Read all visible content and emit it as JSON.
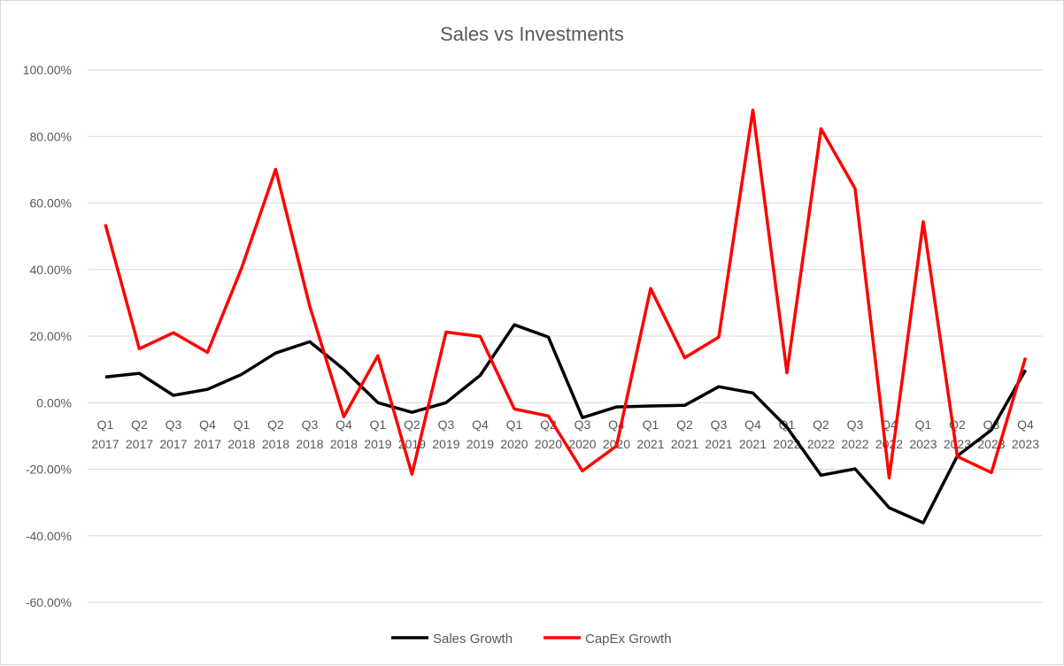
{
  "chart_data": {
    "type": "line",
    "title": "Sales vs Investments",
    "xlabel": "",
    "ylabel": "",
    "ylim": [
      -60,
      100
    ],
    "ytick_step": 20,
    "ytick_format": "percent_2dp",
    "grid": true,
    "legend_position": "bottom",
    "categories": [
      [
        "Q1",
        "2017"
      ],
      [
        "Q2",
        "2017"
      ],
      [
        "Q3",
        "2017"
      ],
      [
        "Q4",
        "2017"
      ],
      [
        "Q1",
        "2018"
      ],
      [
        "Q2",
        "2018"
      ],
      [
        "Q3",
        "2018"
      ],
      [
        "Q4",
        "2018"
      ],
      [
        "Q1",
        "2019"
      ],
      [
        "Q2",
        "2019"
      ],
      [
        "Q3",
        "2019"
      ],
      [
        "Q4",
        "2019"
      ],
      [
        "Q1",
        "2020"
      ],
      [
        "Q2",
        "2020"
      ],
      [
        "Q3",
        "2020"
      ],
      [
        "Q4",
        "2020"
      ],
      [
        "Q1",
        "2021"
      ],
      [
        "Q2",
        "2021"
      ],
      [
        "Q3",
        "2021"
      ],
      [
        "Q4",
        "2021"
      ],
      [
        "Q1",
        "2022"
      ],
      [
        "Q2",
        "2022"
      ],
      [
        "Q3",
        "2022"
      ],
      [
        "Q4",
        "2022"
      ],
      [
        "Q1",
        "2023"
      ],
      [
        "Q2",
        "2023"
      ],
      [
        "Q3",
        "2023"
      ],
      [
        "Q4",
        "2023"
      ]
    ],
    "series": [
      {
        "name": "Sales Growth",
        "color": "#000000",
        "values": [
          7.7,
          8.8,
          2.2,
          4.0,
          8.5,
          14.9,
          18.3,
          10.0,
          0.0,
          -2.9,
          0.0,
          8.2,
          23.4,
          19.7,
          -4.5,
          -1.3,
          -1.0,
          -0.8,
          4.8,
          2.9,
          -7.4,
          -21.8,
          -19.9,
          -31.6,
          -36.1,
          -16.0,
          -8.2,
          9.8
        ]
      },
      {
        "name": "CapEx Growth",
        "color": "#ff0000",
        "values": [
          53.6,
          16.2,
          21.0,
          15.1,
          40.4,
          70.1,
          29.0,
          -4.2,
          14.1,
          -21.5,
          21.2,
          19.9,
          -1.9,
          -4.0,
          -20.5,
          -13.0,
          34.3,
          13.5,
          19.7,
          87.9,
          9.0,
          82.3,
          64.3,
          -22.6,
          54.4,
          -16.2,
          -21.0,
          13.5
        ]
      }
    ]
  }
}
